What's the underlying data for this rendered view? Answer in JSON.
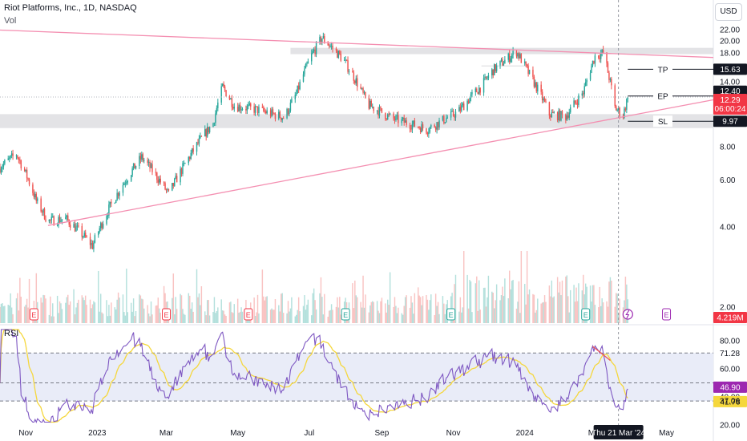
{
  "header": {
    "symbol_line": "Riot Platforms, Inc., 1D, NASDAQ",
    "volume_label": "Vol",
    "rsi_label": "RSI",
    "currency_button": "USD"
  },
  "colors": {
    "up": "#26a69a",
    "down": "#ef5350",
    "trendline": "#f48fb1",
    "zone": "#d9dadd",
    "rsi_line": "#7e57c2",
    "rsi_ma": "#f5d73c",
    "band": "#e9ecf8",
    "label_dark": "#131722",
    "label_red": "#f23645",
    "label_purple": "#9c27b0"
  },
  "chart_data": [
    {
      "type": "candlestick",
      "title": "Riot Platforms, Inc., 1D, NASDAQ",
      "currency": "USD",
      "scale": "log",
      "y_ticks": [
        "22.00",
        "20.00",
        "18.00",
        "16.00",
        "14.00",
        "12.00",
        "10.00",
        "8.00",
        "6.00",
        "4.00",
        "2.00"
      ],
      "x_ticks": [
        "Nov",
        "2023",
        "Mar",
        "May",
        "Jul",
        "Sep",
        "Nov",
        "2024",
        "Mar",
        "May"
      ],
      "x_date_range": [
        "2022-10-10",
        "2024-06-10"
      ],
      "price_path": [
        {
          "date": "2022-10-10",
          "price": 6.7
        },
        {
          "date": "2022-10-24",
          "price": 7.5
        },
        {
          "date": "2022-11-10",
          "price": 5.0
        },
        {
          "date": "2022-11-20",
          "price": 4.2
        },
        {
          "date": "2022-12-05",
          "price": 4.3
        },
        {
          "date": "2022-12-28",
          "price": 3.4
        },
        {
          "date": "2023-01-20",
          "price": 5.5
        },
        {
          "date": "2023-02-08",
          "price": 7.3
        },
        {
          "date": "2023-03-03",
          "price": 5.3
        },
        {
          "date": "2023-03-18",
          "price": 7.0
        },
        {
          "date": "2023-04-10",
          "price": 9.8
        },
        {
          "date": "2023-04-18",
          "price": 13.4
        },
        {
          "date": "2023-04-28",
          "price": 11.4
        },
        {
          "date": "2023-05-18",
          "price": 11.0
        },
        {
          "date": "2023-06-10",
          "price": 10.3
        },
        {
          "date": "2023-06-20",
          "price": 12.6
        },
        {
          "date": "2023-07-04",
          "price": 18.0
        },
        {
          "date": "2023-07-12",
          "price": 20.5
        },
        {
          "date": "2023-07-30",
          "price": 17.0
        },
        {
          "date": "2023-08-20",
          "price": 11.5
        },
        {
          "date": "2023-09-10",
          "price": 10.2
        },
        {
          "date": "2023-10-10",
          "price": 9.3
        },
        {
          "date": "2023-11-05",
          "price": 10.8
        },
        {
          "date": "2023-11-25",
          "price": 13.5
        },
        {
          "date": "2023-12-05",
          "price": 15.5
        },
        {
          "date": "2023-12-25",
          "price": 18.2
        },
        {
          "date": "2024-01-04",
          "price": 15.2
        },
        {
          "date": "2024-01-22",
          "price": 10.6
        },
        {
          "date": "2024-02-05",
          "price": 10.4
        },
        {
          "date": "2024-02-20",
          "price": 12.8
        },
        {
          "date": "2024-03-01",
          "price": 17.5
        },
        {
          "date": "2024-03-08",
          "price": 18.0
        },
        {
          "date": "2024-03-18",
          "price": 11.2
        },
        {
          "date": "2024-03-25",
          "price": 10.5
        },
        {
          "date": "2024-03-29",
          "price": 12.29
        }
      ],
      "price_labels": {
        "tp": {
          "text": "TP",
          "value": "15.63",
          "price": 15.63
        },
        "ep": {
          "text": "EP",
          "value": "12.40",
          "price": 12.4
        },
        "last": {
          "value": "12.29",
          "price": 12.29,
          "countdown": "06:00:24"
        },
        "sl": {
          "text": "SL",
          "value": "9.97",
          "price": 9.97
        }
      },
      "zones": [
        {
          "name": "resistance",
          "low": 17.8,
          "high": 18.8,
          "from": "2023-06-15",
          "to": "end"
        },
        {
          "name": "support",
          "low": 9.4,
          "high": 10.6,
          "from": "start",
          "to": "end"
        },
        {
          "name": "mid",
          "low": 16.0,
          "high": 16.15,
          "from": "2023-11-25",
          "to": "2024-01-05"
        }
      ],
      "trendlines": [
        {
          "from": {
            "date": "2022-10-01",
            "price": 22.0
          },
          "to": {
            "date": "2024-06-10",
            "price": 17.3
          }
        },
        {
          "from": {
            "date": "2022-11-20",
            "price": 4.05
          },
          "to": {
            "date": "2024-06-10",
            "price": 12.0
          }
        }
      ],
      "earnings_markers": [
        {
          "date": "2022-11-08",
          "label": "E"
        },
        {
          "date": "2023-03-01",
          "label": "E"
        },
        {
          "date": "2023-05-10",
          "label": "E"
        },
        {
          "date": "2023-08-01",
          "label": "E"
        },
        {
          "date": "2023-10-30",
          "label": "E"
        },
        {
          "date": "2024-02-22",
          "label": "E"
        },
        {
          "date": "2024-05-01",
          "label": "E"
        }
      ],
      "dividend_marker": {
        "date": "2024-03-29"
      },
      "volume": {
        "last_label": "4.219M"
      },
      "crosshair": {
        "date": "2024-03-21",
        "label": "Thu 21 Mar '24"
      }
    },
    {
      "type": "line",
      "title": "RSI",
      "y_ticks": [
        "80.00",
        "60.00",
        "40.00",
        "20.00"
      ],
      "levels": {
        "upper": 71.28,
        "middle": 50,
        "lower": 37.06
      },
      "level_labels": {
        "upper": "71.28",
        "lower": "37.06"
      },
      "current": {
        "rsi": "46.90",
        "ma": "41.78"
      },
      "series": [
        {
          "name": "RSI",
          "color": "#7e57c2"
        },
        {
          "name": "RSI-based MA",
          "color": "#f5d73c"
        }
      ]
    }
  ]
}
